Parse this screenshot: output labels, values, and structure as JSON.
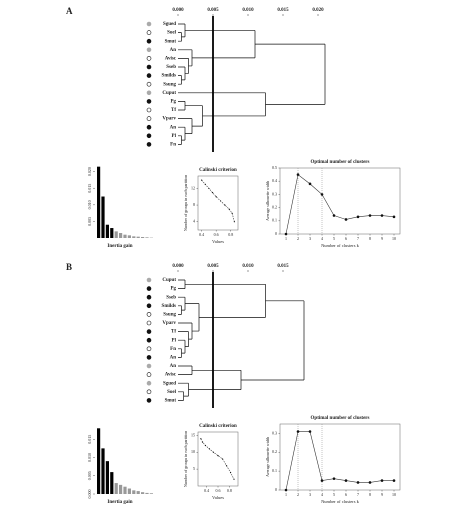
{
  "panels": [
    {
      "label": "A",
      "dendrogram": {
        "type": "dendrogram",
        "ticks": [
          {
            "value": 0,
            "label": "0.000"
          },
          {
            "value": 0.005,
            "label": "0.005"
          },
          {
            "value": 0.01,
            "label": "0.010"
          },
          {
            "value": 0.015,
            "label": "0.015"
          },
          {
            "value": 0.02,
            "label": "0.020"
          }
        ],
        "cut": 0.005,
        "tree": {
          "height": 0.021,
          "children": [
            {
              "height": 0.011,
              "children": [
                {
                  "height": 0.001,
                  "children": [
                    {
                      "label": "Sgued",
                      "marker": "grey"
                    },
                    {
                      "height": 0.0005,
                      "children": [
                        {
                          "label": "Soel",
                          "marker": "open"
                        },
                        {
                          "label": "Smut",
                          "marker": "filled"
                        }
                      ]
                    }
                  ]
                },
                {
                  "height": 0.002,
                  "children": [
                    {
                      "label": "An",
                      "marker": "grey"
                    },
                    {
                      "height": 0.0015,
                      "children": [
                        {
                          "label": "Avisc",
                          "marker": "open"
                        },
                        {
                          "height": 0.001,
                          "children": [
                            {
                              "label": "Sseb",
                              "marker": "filled"
                            },
                            {
                              "height": 0.0005,
                              "children": [
                                {
                                  "label": "Smilds",
                                  "marker": "filled"
                                },
                                {
                                  "label": "Ssung",
                                  "marker": "open"
                                }
                              ]
                            }
                          ]
                        }
                      ]
                    }
                  ]
                }
              ]
            },
            {
              "height": 0.0125,
              "children": [
                {
                  "label": "Cuput",
                  "marker": "grey"
                },
                {
                  "height": 0.0035,
                  "children": [
                    {
                      "height": 0.001,
                      "children": [
                        {
                          "label": "Pg",
                          "marker": "filled"
                        },
                        {
                          "label": "Tf",
                          "marker": "open"
                        }
                      ]
                    },
                    {
                      "height": 0.002,
                      "children": [
                        {
                          "label": "Vparv",
                          "marker": "open"
                        },
                        {
                          "height": 0.001,
                          "children": [
                            {
                              "label": "An",
                              "marker": "filled"
                            },
                            {
                              "height": 0.0005,
                              "children": [
                                {
                                  "label": "Pl",
                                  "marker": "filled"
                                },
                                {
                                  "label": "Fn",
                                  "marker": "filled"
                                }
                              ]
                            }
                          ]
                        }
                      ]
                    }
                  ]
                }
              ]
            }
          ]
        }
      },
      "inertia": {
        "type": "bar",
        "xlabel": "Inertia gain",
        "values": [
          0.0215,
          0.0125,
          0.004,
          0.003,
          0.002,
          0.0015,
          0.001,
          0.0008,
          0.0005,
          0.0004,
          0.0003,
          0.0002,
          0.0001
        ],
        "colors": [
          "#000",
          "#000",
          "#000",
          "#000",
          "#999",
          "#999",
          "#999",
          "#999",
          "#999",
          "#999",
          "#999",
          "#999",
          "#999"
        ],
        "ylim": [
          0,
          0.022
        ],
        "yticks": [
          {
            "value": 0.005,
            "label": "0.005"
          },
          {
            "value": 0.01,
            "label": "0.010"
          },
          {
            "value": 0.015,
            "label": "0.015"
          },
          {
            "value": 0.02,
            "label": "0.020"
          }
        ]
      },
      "calinski": {
        "type": "line",
        "title": "Calinski criterion",
        "xlabel": "Values",
        "ylabel": "Number of groups in each partition",
        "x": [
          0.4,
          0.45,
          0.5,
          0.55,
          0.6,
          0.66,
          0.72,
          0.78,
          0.82,
          0.85
        ],
        "values": [
          14,
          13,
          12,
          11,
          10,
          9,
          8,
          7,
          6,
          4
        ],
        "xlim": [
          0.35,
          0.9
        ],
        "ylim": [
          2,
          15
        ],
        "xticks": [
          0.4,
          0.6,
          0.8
        ],
        "yticks": [
          4,
          8,
          12
        ]
      },
      "silhouette": {
        "type": "line",
        "title": "Optimal number of clusters",
        "xlabel": "Number of clusters k",
        "ylabel": "Average silhouette width",
        "x": [
          1,
          2,
          3,
          4,
          5,
          6,
          7,
          8,
          9,
          10
        ],
        "values": [
          0,
          0.45,
          0.38,
          0.3,
          0.14,
          0.11,
          0.13,
          0.14,
          0.14,
          0.13
        ],
        "vlines": [
          2,
          4
        ],
        "xlim": [
          0.5,
          10.5
        ],
        "ylim": [
          0,
          0.5
        ],
        "xticks": [
          1,
          2,
          3,
          4,
          5,
          6,
          7,
          8,
          9,
          10
        ],
        "yticks": [
          0,
          0.1,
          0.2,
          0.3,
          0.4,
          0.5
        ]
      }
    },
    {
      "label": "B",
      "dendrogram": {
        "type": "dendrogram",
        "ticks": [
          {
            "value": 0,
            "label": "0.000"
          },
          {
            "value": 0.005,
            "label": "0.005"
          },
          {
            "value": 0.01,
            "label": "0.010"
          },
          {
            "value": 0.015,
            "label": "0.015"
          }
        ],
        "cut": 0.005,
        "tree": {
          "height": 0.018,
          "children": [
            {
              "height": 0.0125,
              "children": [
                {
                  "height": 0.001,
                  "children": [
                    {
                      "label": "Cuput",
                      "marker": "grey"
                    },
                    {
                      "label": "Pg",
                      "marker": "filled"
                    }
                  ]
                },
                {
                  "height": 0.003,
                  "children": [
                    {
                      "height": 0.001,
                      "children": [
                        {
                          "label": "Sseb",
                          "marker": "filled"
                        },
                        {
                          "height": 0.0005,
                          "children": [
                            {
                              "label": "Smilds",
                              "marker": "filled"
                            },
                            {
                              "label": "Ssung",
                              "marker": "open"
                            }
                          ]
                        }
                      ]
                    },
                    {
                      "height": 0.002,
                      "children": [
                        {
                          "label": "Vparv",
                          "marker": "open"
                        },
                        {
                          "height": 0.0015,
                          "children": [
                            {
                              "label": "Tf",
                              "marker": "filled"
                            },
                            {
                              "height": 0.001,
                              "children": [
                                {
                                  "label": "Pl",
                                  "marker": "filled"
                                },
                                {
                                  "height": 0.0005,
                                  "children": [
                                    {
                                      "label": "Fn",
                                      "marker": "open"
                                    },
                                    {
                                      "label": "An",
                                      "marker": "filled"
                                    }
                                  ]
                                }
                              ]
                            }
                          ]
                        }
                      ]
                    }
                  ]
                }
              ]
            },
            {
              "height": 0.009,
              "children": [
                {
                  "height": 0.002,
                  "children": [
                    {
                      "label": "An",
                      "marker": "grey"
                    },
                    {
                      "label": "Avisc",
                      "marker": "open"
                    }
                  ]
                },
                {
                  "height": 0.0015,
                  "children": [
                    {
                      "label": "Sgued",
                      "marker": "grey"
                    },
                    {
                      "height": 0.0008,
                      "children": [
                        {
                          "label": "Soel",
                          "marker": "open"
                        },
                        {
                          "label": "Smut",
                          "marker": "filled"
                        }
                      ]
                    }
                  ]
                }
              ]
            }
          ]
        }
      },
      "inertia": {
        "type": "bar",
        "xlabel": "Inertia gain",
        "values": [
          0.018,
          0.0125,
          0.009,
          0.006,
          0.003,
          0.0025,
          0.002,
          0.0015,
          0.001,
          0.0008,
          0.0005,
          0.0003,
          0.0002
        ],
        "colors": [
          "#000",
          "#000",
          "#000",
          "#000",
          "#999",
          "#999",
          "#999",
          "#999",
          "#999",
          "#999",
          "#999",
          "#999",
          "#999"
        ],
        "ylim": [
          0,
          0.02
        ],
        "yticks": [
          {
            "value": 0,
            "label": "0.000"
          },
          {
            "value": 0.005,
            "label": "0.005"
          },
          {
            "value": 0.01,
            "label": "0.010"
          },
          {
            "value": 0.015,
            "label": "0.015"
          }
        ]
      },
      "calinski": {
        "type": "line",
        "title": "Calinski criterion",
        "xlabel": "Values",
        "ylabel": "Number of groups in each partition",
        "x": [
          0.3,
          0.33,
          0.38,
          0.45,
          0.52,
          0.6,
          0.68,
          0.75,
          0.82,
          0.88
        ],
        "values": [
          14,
          13,
          12,
          11,
          10,
          9,
          8,
          6,
          4,
          2
        ],
        "xlim": [
          0.25,
          0.95
        ],
        "ylim": [
          0,
          16
        ],
        "xticks": [
          0.4,
          0.6,
          0.8
        ],
        "yticks": [
          5,
          10,
          15
        ]
      },
      "silhouette": {
        "type": "line",
        "title": "Optimal number of clusters",
        "xlabel": "Number of clusters k",
        "ylabel": "Average silhouette width",
        "x": [
          1,
          2,
          3,
          4,
          5,
          6,
          7,
          8,
          9,
          10
        ],
        "values": [
          0,
          0.31,
          0.31,
          0.05,
          0.06,
          0.05,
          0.04,
          0.04,
          0.05,
          0.05
        ],
        "vlines": [
          2,
          4
        ],
        "xlim": [
          0.5,
          10.5
        ],
        "ylim": [
          0,
          0.35
        ],
        "xticks": [
          1,
          2,
          3,
          4,
          5,
          6,
          7,
          8,
          9,
          10
        ],
        "yticks": [
          0,
          0.1,
          0.2,
          0.3
        ]
      }
    }
  ]
}
